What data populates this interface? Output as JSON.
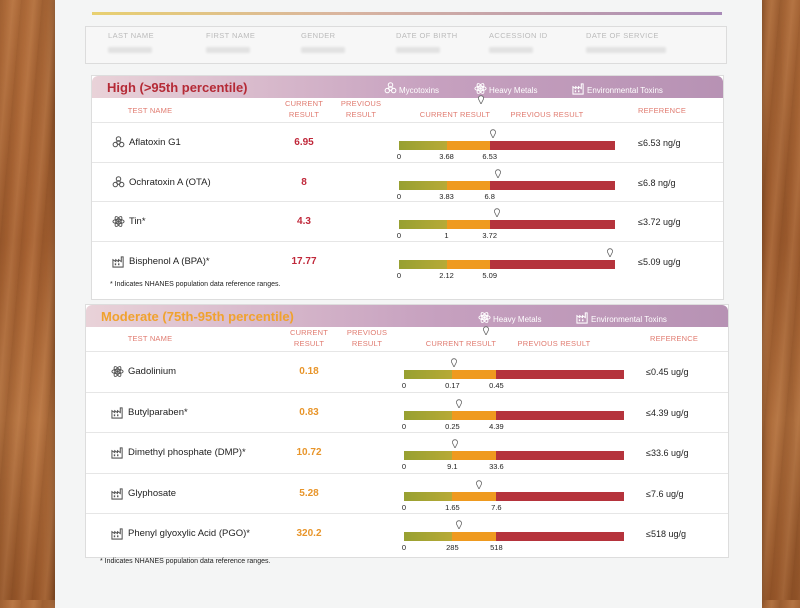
{
  "patient": {
    "labels": [
      "LAST NAME",
      "FIRST NAME",
      "GENDER",
      "DATE OF BIRTH",
      "ACCESSION ID",
      "DATE OF SERVICE"
    ]
  },
  "columns": {
    "test_name": "TEST NAME",
    "current_result": "CURRENT\nRESULT",
    "previous_result": "PREVIOUS\nRESULT",
    "current_result_legend": "CURRENT RESULT",
    "previous_result_legend": "PREVIOUS RESULT",
    "reference": "REFERENCE"
  },
  "colors": {
    "high": "#b52a36",
    "moderate": "#f0a22e",
    "zone_low": "#a9a634",
    "zone_mid": "#ef9a1f",
    "zone_high": "#b5333c"
  },
  "high": {
    "title": "High (>95th percentile)",
    "legend": [
      {
        "label": "Mycotoxins",
        "icon": "biohazard-icon"
      },
      {
        "label": "Heavy Metals",
        "icon": "atom-icon"
      },
      {
        "label": "Environmental Toxins",
        "icon": "factory-icon"
      }
    ],
    "footnote": "* Indicates NHANES population data reference ranges.",
    "rows": [
      {
        "name": "Aflatoxin G1",
        "icon": "biohazard-icon",
        "result": "6.95",
        "current": 6.95,
        "t1": 3.68,
        "t2": 6.53,
        "t1_label": "3.68",
        "t2_label": "6.53",
        "ref": "≤6.53 ng/g"
      },
      {
        "name": "Ochratoxin A (OTA)",
        "icon": "biohazard-icon",
        "result": "8",
        "current": 8,
        "t1": 3.83,
        "t2": 6.8,
        "t1_label": "3.83",
        "t2_label": "6.8",
        "ref": "≤6.8 ng/g"
      },
      {
        "name": "Tin*",
        "icon": "atom-icon",
        "result": "4.3",
        "current": 4.3,
        "t1": 1,
        "t2": 3.72,
        "t1_label": "1",
        "t2_label": "3.72",
        "ref": "≤3.72 ug/g"
      },
      {
        "name": "Bisphenol A (BPA)*",
        "icon": "factory-icon",
        "result": "17.77",
        "current": 17.77,
        "t1": 2.12,
        "t2": 5.09,
        "t1_label": "2.12",
        "t2_label": "5.09",
        "ref": "≤5.09 ug/g"
      }
    ]
  },
  "moderate": {
    "title": "Moderate (75th-95th percentile)",
    "legend": [
      {
        "label": "Heavy Metals",
        "icon": "atom-icon"
      },
      {
        "label": "Environmental Toxins",
        "icon": "factory-icon"
      }
    ],
    "footnote": "* Indicates NHANES population data reference ranges.",
    "rows": [
      {
        "name": "Gadolinium",
        "icon": "atom-icon",
        "result": "0.18",
        "current": 0.18,
        "t1": 0.17,
        "t2": 0.45,
        "t1_label": "0.17",
        "t2_label": "0.45",
        "ref": "≤0.45 ug/g"
      },
      {
        "name": "Butylparaben*",
        "icon": "factory-icon",
        "result": "0.83",
        "current": 0.83,
        "t1": 0.25,
        "t2": 4.39,
        "t1_label": "0.25",
        "t2_label": "4.39",
        "ref": "≤4.39 ug/g"
      },
      {
        "name": "Dimethyl phosphate (DMP)*",
        "icon": "factory-icon",
        "result": "10.72",
        "current": 10.72,
        "t1": 9.1,
        "t2": 33.6,
        "t1_label": "9.1",
        "t2_label": "33.6",
        "ref": "≤33.6 ug/g"
      },
      {
        "name": "Glyphosate",
        "icon": "factory-icon",
        "result": "5.28",
        "current": 5.28,
        "t1": 1.65,
        "t2": 7.6,
        "t1_label": "1.65",
        "t2_label": "7.6",
        "ref": "≤7.6 ug/g"
      },
      {
        "name": "Phenyl glyoxylic Acid (PGO)*",
        "icon": "factory-icon",
        "result": "320.2",
        "current": 320.2,
        "t1": 285,
        "t2": 518,
        "t1_label": "285",
        "t2_label": "518",
        "ref": "≤518 ug/g"
      }
    ]
  },
  "axis_zero": "0"
}
